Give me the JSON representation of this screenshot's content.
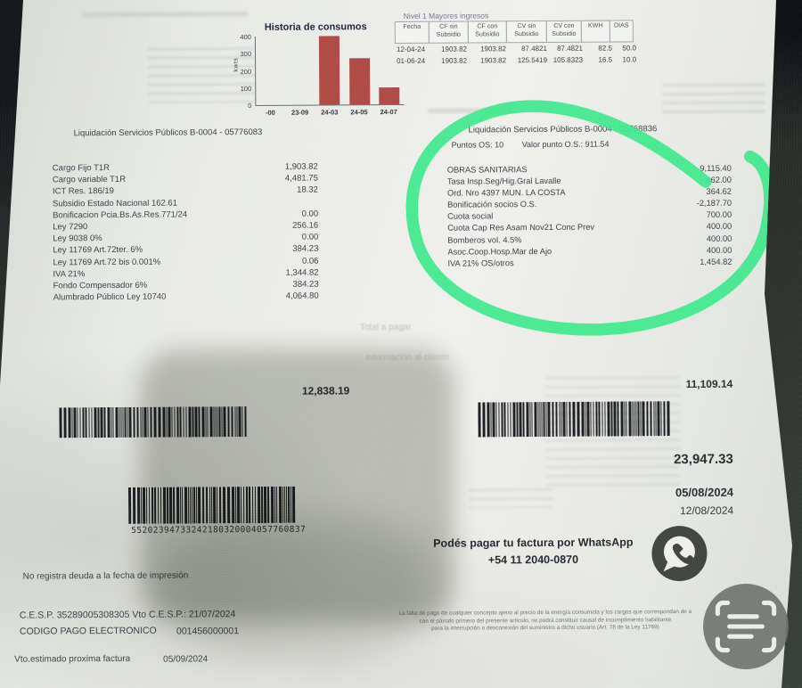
{
  "colors": {
    "marker_green": "#3ee88c",
    "bar_red": "#b04a45",
    "paper": "#e9ebe6",
    "background": "#2a2e2a",
    "icon_gray": "#6e726d"
  },
  "chart_data": {
    "type": "bar",
    "title": "Historia de consumos",
    "ylabel": "kwts",
    "xlabel": "",
    "categories": [
      "-00",
      "23-09",
      "24-03",
      "24-05",
      "24-07"
    ],
    "values": [
      0,
      0,
      400,
      270,
      100
    ],
    "ylim": [
      0,
      400
    ],
    "yticks": [
      400,
      300,
      200,
      100,
      0
    ],
    "grid": false,
    "legend": "none"
  },
  "consumption_table": {
    "title": "Nivel 1 Mayores ingresos",
    "columns": [
      [
        "Fecha",
        ""
      ],
      [
        "CF sin",
        "Subsidio"
      ],
      [
        "CF con",
        "Subsidio"
      ],
      [
        "CV sin",
        "Subsidio"
      ],
      [
        "CV con",
        "Subsidio"
      ],
      [
        "KWH",
        ""
      ],
      [
        "DIAS",
        ""
      ]
    ],
    "rows": [
      [
        "12-04-24",
        "1903.82",
        "1903.82",
        "87.4821",
        "87.4821",
        "82.5",
        "50.0"
      ],
      [
        "01-06-24",
        "1903.82",
        "1903.82",
        "125.5419",
        "105.8323",
        "16.5",
        "10.0"
      ]
    ]
  },
  "left_section": {
    "header": "Liquidación Servicios Públicos B-0004 - 05776083",
    "items": [
      {
        "label": "Cargo Fijo T1R",
        "amount": "1,903.82"
      },
      {
        "label": "Cargo variable T1R",
        "amount": "4,481.75"
      },
      {
        "label": "ICT Res. 186/19",
        "amount": "18.32"
      },
      {
        "label": "Subsidio Estado Nacional 162.61",
        "amount": ""
      },
      {
        "label": "Bonificacion Pcia.Bs.As.Res.771/24",
        "amount": "0.00"
      },
      {
        "label": "Ley 7290",
        "amount": "256.16"
      },
      {
        "label": "Ley 9038 0%",
        "amount": "0.00"
      },
      {
        "label": "Ley 11769 Art.72ter. 6%",
        "amount": "384.23"
      },
      {
        "label": "Ley 11769 Art.72 bis 0.001%",
        "amount": "0.06"
      },
      {
        "label": "IVA 21%",
        "amount": "1,344.82"
      },
      {
        "label": "Fondo Compensador 6%",
        "amount": "384.23"
      },
      {
        "label": "Alumbrado Público Ley 10740",
        "amount": "4,064.80"
      }
    ],
    "total": "12,838.19"
  },
  "right_section": {
    "header": "Liquidación Servicios Públicos B-0004 - 05768836",
    "points_label": "Puntos OS: 10",
    "points_value": "Valor punto O.S.: 911.54",
    "items": [
      {
        "label": "OBRAS SANITARIAS",
        "amount": "9,115.40"
      },
      {
        "label": "Tasa Insp.Seg/Hig.Gral Lavalle",
        "amount": "462.00"
      },
      {
        "label": "Ord. Nro 4397 MUN. LA COSTA",
        "amount": "364.62"
      },
      {
        "label": "Bonificación socios O.S.",
        "amount": "-2,187.70"
      },
      {
        "label": "Cuota social",
        "amount": "700.00"
      },
      {
        "label": "Cuota Cap Res Asam Nov21 Conc Prev",
        "amount": "400.00"
      },
      {
        "label": "Bomberos vol. 4.5%",
        "amount": "400.00"
      },
      {
        "label": "Asoc.Coop.Hosp.Mar de Ajo",
        "amount": "400.00"
      },
      {
        "label": "IVA 21% OS/otros",
        "amount": "1,454.82"
      }
    ],
    "total": "11,109.14"
  },
  "faint": {
    "total_a_pagar": "Total a pagar",
    "info_cliente": "Información al cliente"
  },
  "totals": {
    "grand_total": "23,947.33",
    "due_date": "05/08/2024",
    "second_date": "12/08/2024"
  },
  "whatsapp": {
    "line1": "Podés pagar tu factura por WhatsApp",
    "line2": "+54 11 2040-0870",
    "icon": "whatsapp-icon"
  },
  "footer": {
    "no_debt": "No registra deuda a la fecha de impresión",
    "cesp_line": "C.E.S.P. 35289005308305   Vto C.E.S.P.: 21/07/2024",
    "codigo_label": "CODIGO PAGO ELECTRONICO",
    "codigo_value": "001456000001",
    "barcode_number": "55202394733242180320004057760837",
    "vto_label": "Vto.estimado proxima factura",
    "vto_value": "05/09/2024",
    "fine_print_lines": [
      "La falta de pago de cualquier concepto ajeno al precio de la energía consumida y los cargos que correspondan de a",
      "con el párrafo primero del presente artículo, no podrá constituir causal de incumplimiento habilitante",
      "para la interrupción o desconexión del suministro a dicho usuario (Art. 78 de la Ley 11769)"
    ]
  },
  "overlay": {
    "scan_icon": "scan-frame-icon"
  }
}
